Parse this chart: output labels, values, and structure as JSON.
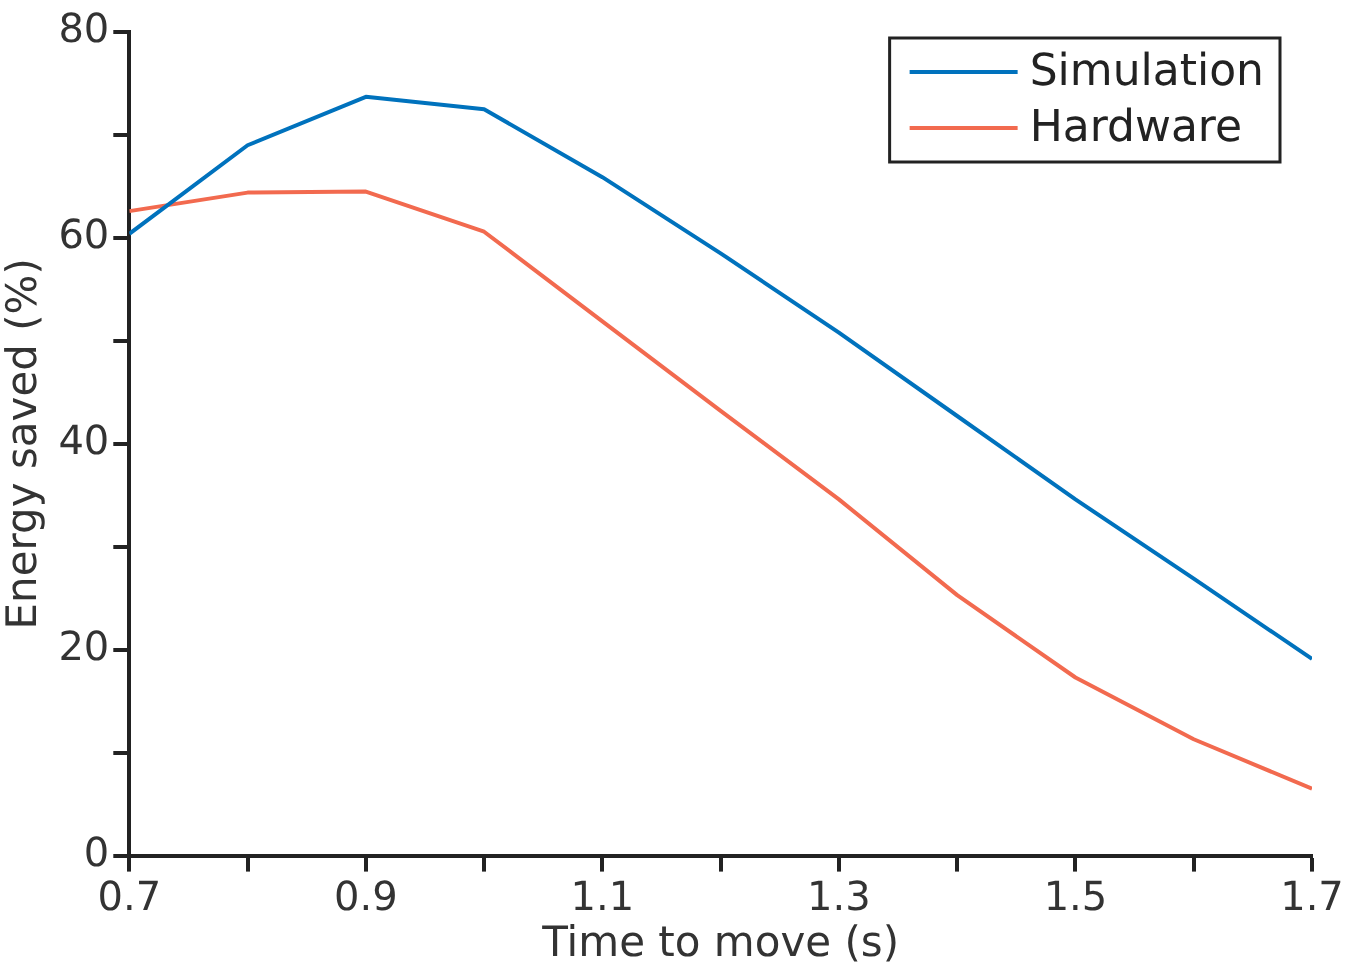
{
  "chart_data": {
    "type": "line",
    "xlabel": "Time to move (s)",
    "ylabel": "Energy saved (%)",
    "x": [
      0.7,
      0.8,
      0.9,
      1.0,
      1.1,
      1.2,
      1.3,
      1.4,
      1.5,
      1.6,
      1.7
    ],
    "series": [
      {
        "name": "Simulation",
        "color": "#0072bd",
        "values": [
          60.4,
          69.0,
          73.7,
          72.5,
          65.9,
          58.5,
          50.8,
          42.7,
          34.6,
          26.9,
          19.1
        ]
      },
      {
        "name": "Hardware",
        "color": "#f26a4f",
        "values": [
          62.6,
          64.4,
          64.5,
          60.6,
          51.9,
          43.2,
          34.6,
          25.3,
          17.3,
          11.3,
          6.5
        ]
      }
    ],
    "xlim": [
      0.7,
      1.7
    ],
    "xticks": [
      0.7,
      {
        "value": 0.8,
        "label": null
      },
      0.9,
      {
        "value": 1.0,
        "label": null
      },
      1.1,
      {
        "value": 1.2,
        "label": null
      },
      1.3,
      {
        "value": 1.4,
        "label": null
      },
      1.5,
      {
        "value": 1.6,
        "label": null
      },
      1.7
    ],
    "ylim": [
      0,
      80
    ],
    "yticks": [
      0,
      {
        "value": 10,
        "label": null
      },
      20,
      {
        "value": 30,
        "label": null
      },
      40,
      {
        "value": 50,
        "label": null
      },
      60,
      {
        "value": 70,
        "label": null
      },
      80
    ],
    "grid": false,
    "legend": "top right",
    "marker": "none",
    "line_style": "solid"
  }
}
